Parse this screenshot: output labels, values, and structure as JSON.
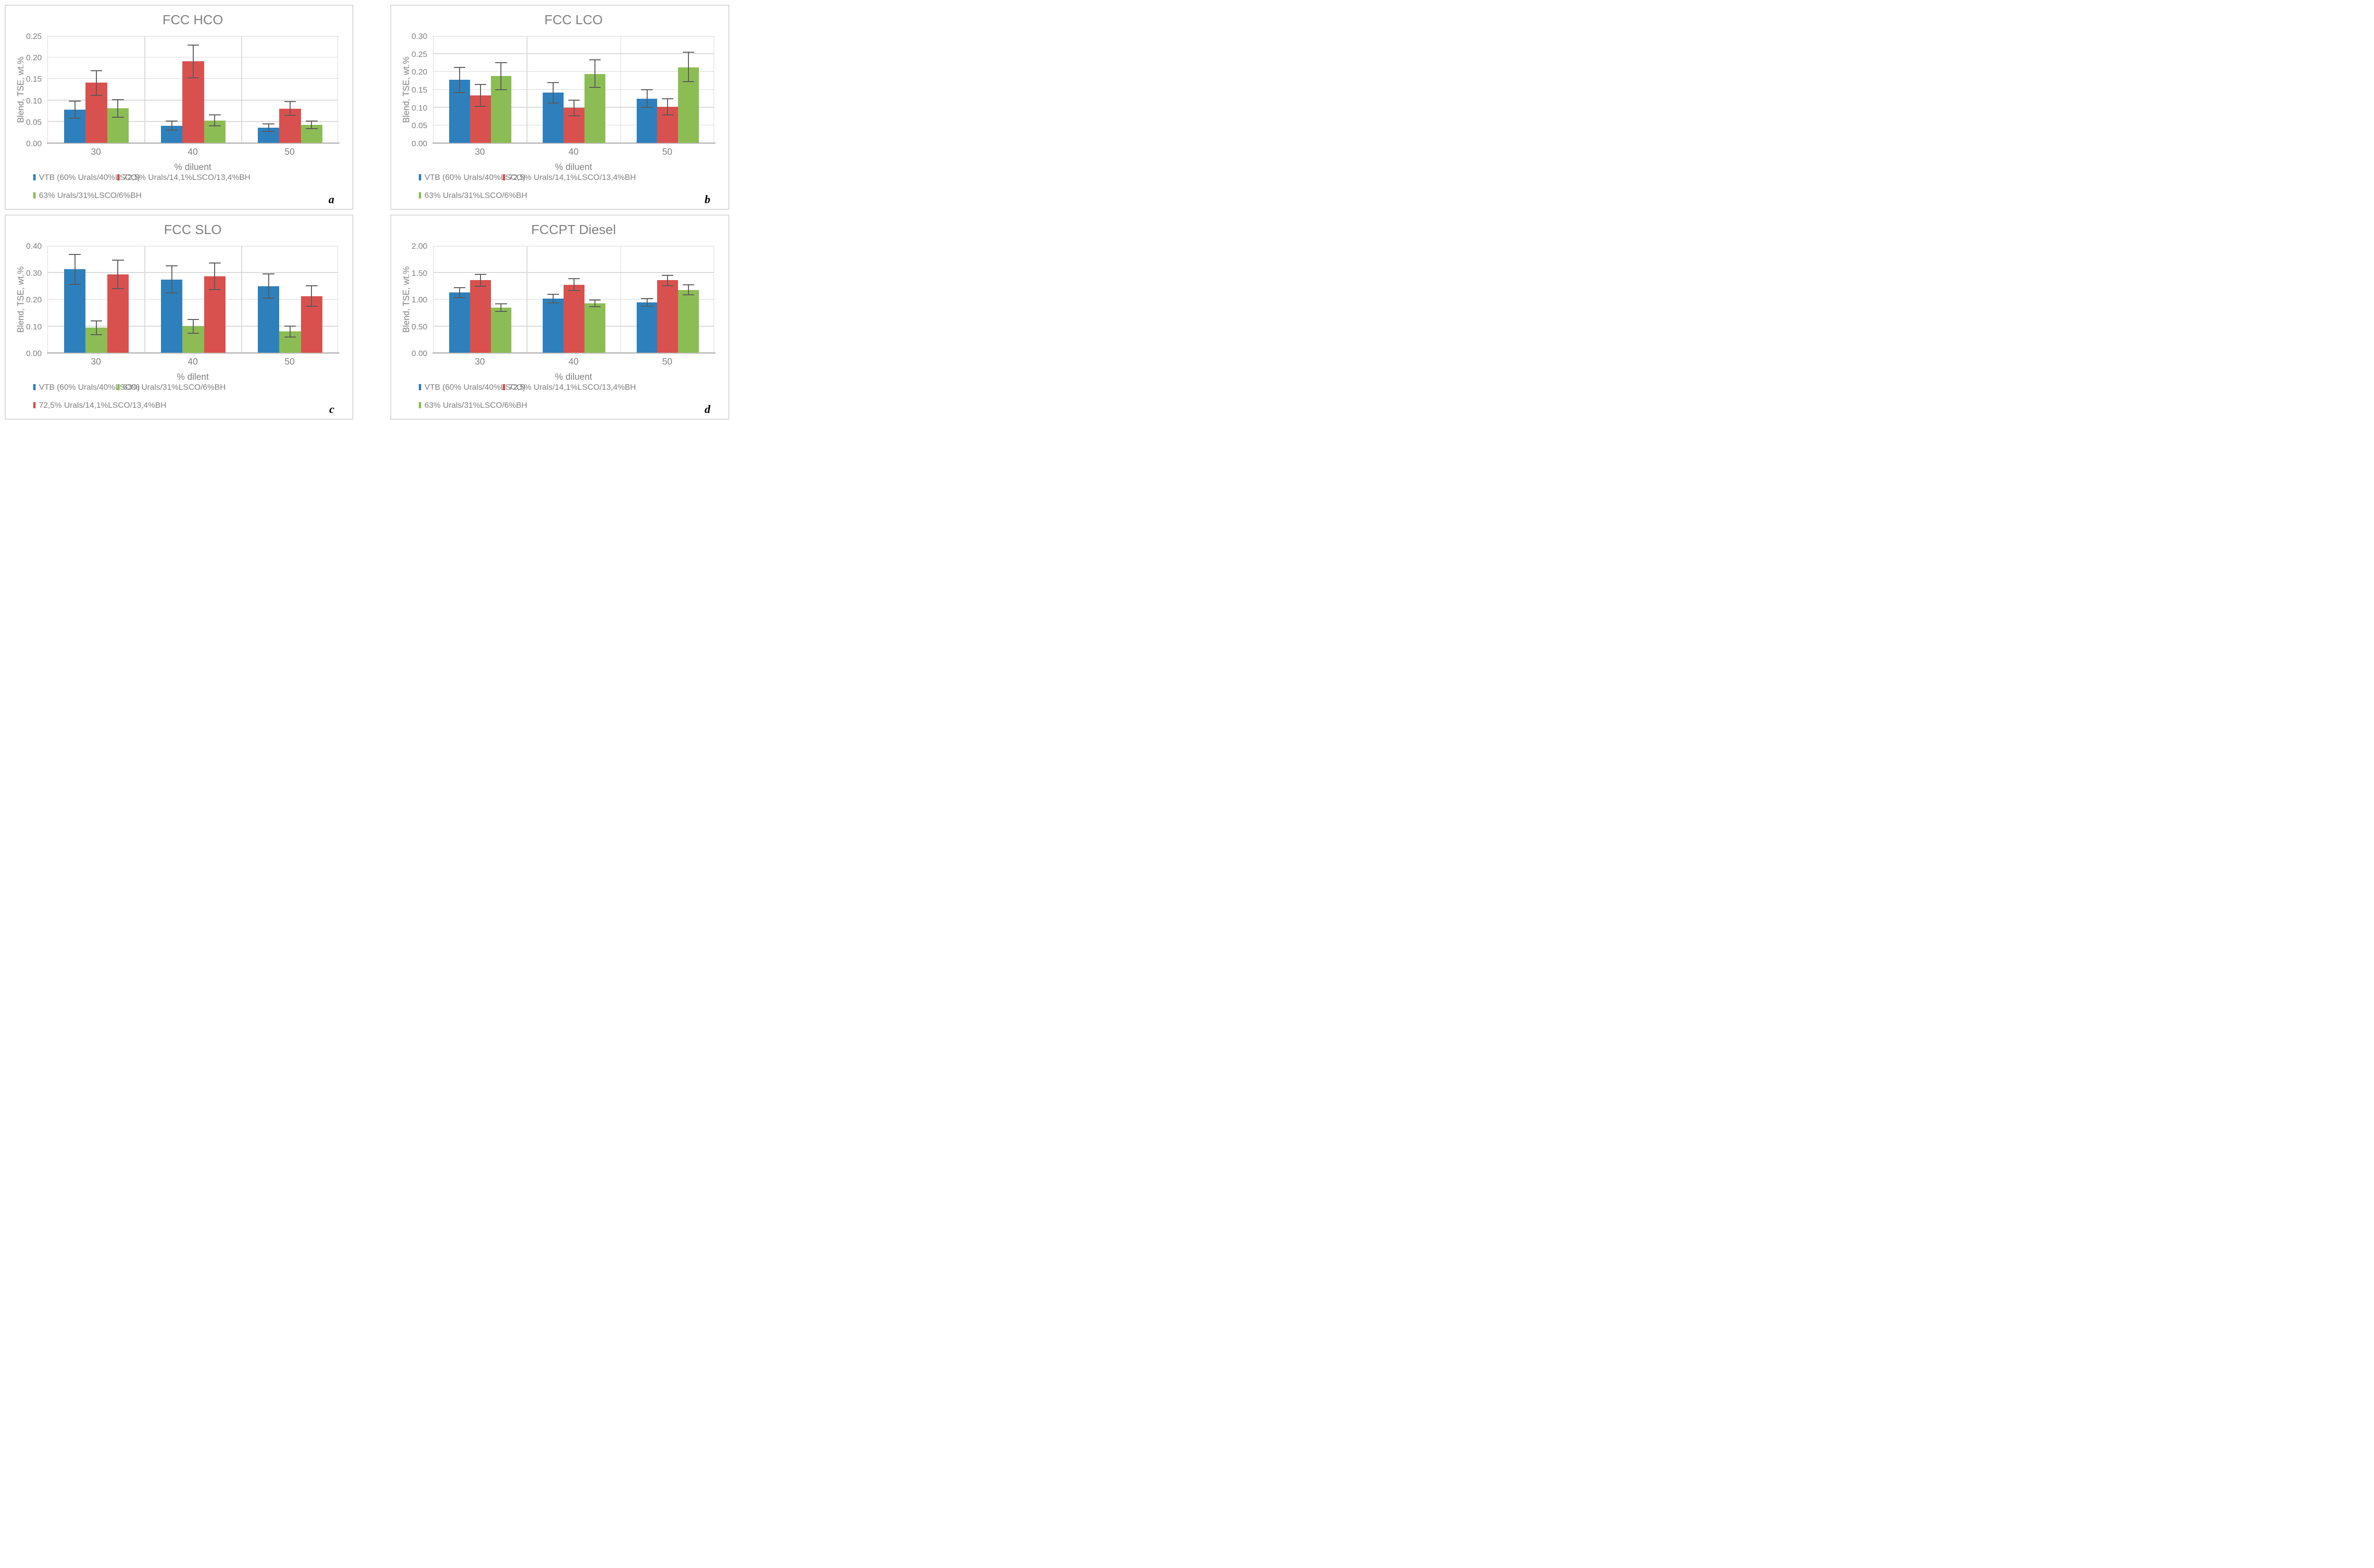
{
  "colors": {
    "blue": "#2e80bc",
    "red": "#d9514e",
    "green": "#8cbd55",
    "error_bar": "#595959",
    "gridline": "#d9d9d9",
    "axis_line": "#bfbfbf",
    "text": "#7f7f7f",
    "title": "#808080",
    "panel_border": "#d9d9d9"
  },
  "chart_data": [
    {
      "panel_label": "a",
      "type": "bar",
      "title": "FCC HCO",
      "xlabel": "% diluent",
      "ylabel": "Blend, TSE, wt.%",
      "categories": [
        "30",
        "40",
        "50"
      ],
      "ylim": [
        0,
        0.25
      ],
      "ytick_step": 0.05,
      "ytick_decimals": 2,
      "grid": true,
      "legend_position": "bottom",
      "legend_rows": [
        [
          0,
          1
        ],
        [
          2
        ]
      ],
      "series": [
        {
          "name": "VTB (60% Urals/40%LSCO)",
          "color_key": "blue",
          "values": [
            0.077,
            0.04,
            0.035
          ],
          "err_low": [
            0.057,
            0.03,
            0.027
          ],
          "err_high": [
            0.097,
            0.051,
            0.044
          ]
        },
        {
          "name": "72,5% Urals/14,1%LSCO/13,4%BH",
          "color_key": "red",
          "values": [
            0.14,
            0.19,
            0.08
          ],
          "err_low": [
            0.111,
            0.152,
            0.064
          ],
          "err_high": [
            0.168,
            0.228,
            0.096
          ]
        },
        {
          "name": "63% Urals/31%LSCO/6%BH",
          "color_key": "green",
          "values": [
            0.081,
            0.052,
            0.042
          ],
          "err_low": [
            0.06,
            0.04,
            0.033
          ],
          "err_high": [
            0.101,
            0.065,
            0.051
          ]
        }
      ]
    },
    {
      "panel_label": "b",
      "type": "bar",
      "title": "FCC LCO",
      "xlabel": "% diluent",
      "ylabel": "Blend, TSE, wt.%",
      "categories": [
        "30",
        "40",
        "50"
      ],
      "ylim": [
        0,
        0.3
      ],
      "ytick_step": 0.05,
      "ytick_decimals": 2,
      "grid": true,
      "legend_position": "bottom",
      "legend_rows": [
        [
          0,
          1
        ],
        [
          2
        ]
      ],
      "series": [
        {
          "name": "VTB (60% Urals/40%LSCO)",
          "color_key": "blue",
          "values": [
            0.176,
            0.141,
            0.124
          ],
          "err_low": [
            0.141,
            0.112,
            0.099
          ],
          "err_high": [
            0.211,
            0.169,
            0.149
          ]
        },
        {
          "name": "72,5% Urals/14,1%LSCO/13,4%BH",
          "color_key": "red",
          "values": [
            0.133,
            0.098,
            0.101
          ],
          "err_low": [
            0.102,
            0.076,
            0.079
          ],
          "err_high": [
            0.163,
            0.12,
            0.124
          ]
        },
        {
          "name": "63% Urals/31%LSCO/6%BH",
          "color_key": "green",
          "values": [
            0.187,
            0.193,
            0.211
          ],
          "err_low": [
            0.149,
            0.155,
            0.171
          ],
          "err_high": [
            0.224,
            0.232,
            0.254
          ]
        }
      ]
    },
    {
      "panel_label": "c",
      "type": "bar",
      "title": "FCC SLO",
      "xlabel": "% dilent",
      "ylabel": "Blend, TSE, wt.%",
      "categories": [
        "30",
        "40",
        "50"
      ],
      "ylim": [
        0,
        0.4
      ],
      "ytick_step": 0.1,
      "ytick_decimals": 2,
      "grid": true,
      "legend_position": "bottom",
      "legend_rows": [
        [
          0,
          1
        ],
        [
          2
        ]
      ],
      "series": [
        {
          "name": "VTB (60% Urals/40%LSCO)",
          "color_key": "blue",
          "values": [
            0.311,
            0.273,
            0.248
          ],
          "err_low": [
            0.255,
            0.223,
            0.204
          ],
          "err_high": [
            0.367,
            0.324,
            0.293
          ]
        },
        {
          "name": "63% Urals/31%LSCO/6%BH",
          "color_key": "green",
          "values": [
            0.094,
            0.1,
            0.079
          ],
          "err_low": [
            0.068,
            0.073,
            0.059
          ],
          "err_high": [
            0.118,
            0.124,
            0.099
          ]
        },
        {
          "name": "72,5% Urals/14,1%LSCO/13,4%BH",
          "color_key": "red",
          "values": [
            0.292,
            0.285,
            0.211
          ],
          "err_low": [
            0.239,
            0.236,
            0.174
          ],
          "err_high": [
            0.345,
            0.335,
            0.249
          ]
        }
      ]
    },
    {
      "panel_label": "d",
      "type": "bar",
      "title": "FCCPT Diesel",
      "xlabel": "% diluent",
      "ylabel": "Blend, TSE, wt.%",
      "categories": [
        "30",
        "40",
        "50"
      ],
      "ylim": [
        0,
        2.0
      ],
      "ytick_step": 0.5,
      "ytick_decimals": 2,
      "grid": true,
      "legend_position": "bottom",
      "legend_rows": [
        [
          0,
          1
        ],
        [
          2
        ]
      ],
      "series": [
        {
          "name": "VTB (60% Urals/40%LSCO)",
          "color_key": "blue",
          "values": [
            1.12,
            1.01,
            0.94
          ],
          "err_low": [
            1.03,
            0.93,
            0.87
          ],
          "err_high": [
            1.21,
            1.09,
            1.01
          ]
        },
        {
          "name": "72,5% Urals/14,1%LSCO/13,4%BH",
          "color_key": "red",
          "values": [
            1.35,
            1.27,
            1.35
          ],
          "err_low": [
            1.24,
            1.16,
            1.25
          ],
          "err_high": [
            1.46,
            1.38,
            1.44
          ]
        },
        {
          "name": "63% Urals/31%LSCO/6%BH",
          "color_key": "green",
          "values": [
            0.84,
            0.92,
            1.17
          ],
          "err_low": [
            0.77,
            0.86,
            1.08
          ],
          "err_high": [
            0.91,
            0.98,
            1.27
          ]
        }
      ]
    }
  ]
}
